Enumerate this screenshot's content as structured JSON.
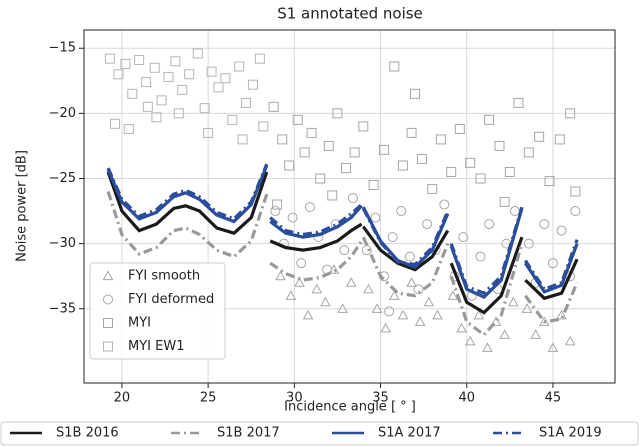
{
  "chart_data": {
    "type": "scatter",
    "title": "S1 annotated noise",
    "x_label": "Incidence angle [ ° ]",
    "y_label": "Noise power  [dB]",
    "xlim": [
      17.8,
      48.6
    ],
    "ylim": [
      -40.7,
      -13.6
    ],
    "xticks": [
      20,
      25,
      30,
      35,
      40,
      45
    ],
    "yticks": [
      {
        "value": -15,
        "label": "−15"
      },
      {
        "value": -20,
        "label": "−20"
      },
      {
        "value": -25,
        "label": "−25"
      },
      {
        "value": -30,
        "label": "−30"
      },
      {
        "value": -35,
        "label": "−35"
      }
    ],
    "grid": true,
    "scatter_series": [
      {
        "name": "FYI smooth",
        "marker": "triangle",
        "color": "#a6a6a6",
        "x": [
          29.2,
          29.8,
          30.3,
          30.8,
          31.3,
          31.8,
          32.3,
          32.8,
          33.3,
          34.3,
          34.8,
          35.3,
          35.8,
          36.3,
          36.8,
          37.3,
          37.8,
          38.3,
          39.2,
          39.7,
          40.2,
          40.7,
          41.2,
          41.7,
          42.2,
          42.7,
          43.5,
          44,
          44.5,
          45,
          45.5,
          46
        ],
        "values": [
          -32.5,
          -34,
          -33,
          -35.5,
          -33.5,
          -34.5,
          -32,
          -35,
          -33,
          -33.5,
          -35,
          -36.5,
          -34,
          -35.5,
          -33,
          -36,
          -34.5,
          -35.5,
          -34,
          -36.5,
          -37.5,
          -35.5,
          -38,
          -36,
          -37,
          -34.5,
          -35,
          -37,
          -36,
          -38,
          -35.5,
          -37.5
        ]
      },
      {
        "name": "FYI deformed",
        "marker": "circle",
        "color": "#a6a6a6",
        "x": [
          28.9,
          29.4,
          29.9,
          30.4,
          30.9,
          31.4,
          31.9,
          32.4,
          32.9,
          33.4,
          34.2,
          34.7,
          35.2,
          35.7,
          36.2,
          36.7,
          37.2,
          37.7,
          38.2,
          38.7,
          39.3,
          39.8,
          40.3,
          40.8,
          41.3,
          41.8,
          42.3,
          42.8,
          43.6,
          44,
          44.5,
          45,
          45.5,
          46,
          46.3,
          35.5
        ],
        "values": [
          -27.5,
          -30,
          -28,
          -31.5,
          -27.2,
          -29.5,
          -32,
          -28.5,
          -30.5,
          -26.5,
          -30.5,
          -28,
          -32.5,
          -29.5,
          -27.5,
          -31,
          -33.5,
          -28.5,
          -30.5,
          -27,
          -32.5,
          -29.5,
          -34,
          -31,
          -28.5,
          -33.5,
          -30,
          -27.5,
          -30,
          -33,
          -28.5,
          -31.5,
          -29,
          -32.5,
          -27.5,
          -35.2
        ]
      },
      {
        "name": "MYI",
        "marker": "square",
        "color": "#a6a6a6",
        "x": [
          28.8,
          29.3,
          29.7,
          30.2,
          30.6,
          31,
          31.5,
          32,
          32.5,
          33,
          33.5,
          34,
          34.6,
          35.2,
          35.8,
          36.3,
          36.8,
          37.4,
          38,
          38.5,
          39.1,
          39.6,
          40.2,
          40.8,
          41.3,
          41.9,
          42.5,
          43,
          43.6,
          44.2,
          44.8,
          45.4,
          46,
          46.3,
          37,
          32.2,
          29,
          42.2
        ],
        "values": [
          -19.5,
          -22,
          -24,
          -20.5,
          -23,
          -21.5,
          -25,
          -22.5,
          -20,
          -24.2,
          -23,
          -21,
          -25.5,
          -22.8,
          -16.4,
          -24,
          -21.5,
          -23.5,
          -25.8,
          -22,
          -24.5,
          -21.2,
          -23.8,
          -25,
          -20.5,
          -22.5,
          -24.5,
          -19.2,
          -23,
          -21.8,
          -25.2,
          -22,
          -20,
          -26,
          -18.5,
          -26.3,
          -27,
          -26.8
        ]
      },
      {
        "name": "MYI EW1",
        "marker": "square",
        "color": "#b5b5b5",
        "x": [
          19.3,
          19.8,
          20.2,
          20.6,
          21,
          21.4,
          21.9,
          22.3,
          22.7,
          23.1,
          23.5,
          23.9,
          24.4,
          24.8,
          25.2,
          25.6,
          26,
          26.4,
          26.8,
          27.2,
          27.6,
          28,
          19.6,
          20.4,
          22,
          25,
          27,
          21.5,
          23.3,
          28.2
        ],
        "values": [
          -15.8,
          -17,
          -16.2,
          -18.5,
          -15.9,
          -17.6,
          -16.5,
          -19,
          -17.2,
          -16,
          -18.2,
          -17,
          -15.4,
          -19.6,
          -16.8,
          -18,
          -17.3,
          -20.5,
          -16.4,
          -19.2,
          -17.8,
          -15.8,
          -20.8,
          -21.2,
          -20.3,
          -21.5,
          -22,
          -19.5,
          -20,
          -21
        ]
      }
    ],
    "x": [
      19.2,
      20,
      21,
      22,
      23,
      23.7,
      24.5,
      25.5,
      26.5,
      27.5,
      28.4,
      null,
      28.6,
      29.5,
      30.5,
      31.5,
      32.5,
      33.3,
      33.9,
      null,
      34,
      35,
      36,
      37,
      38,
      38.9,
      null,
      39.1,
      40,
      41,
      42,
      43.2,
      null,
      43.4,
      44.5,
      45.5,
      46.4
    ],
    "series": [
      {
        "name": "S1B 2016",
        "color": "#1a1a1a",
        "dash": "solid",
        "values": [
          -24.5,
          -27.5,
          -29.0,
          -28.5,
          -27.3,
          -27.1,
          -27.5,
          -28.8,
          -29.2,
          -28.0,
          -24.5,
          null,
          -29.8,
          -30.3,
          -30.5,
          -30.3,
          -29.8,
          -29,
          -28.5,
          null,
          -28.7,
          -30.5,
          -31.5,
          -32,
          -31,
          -29,
          null,
          -31.5,
          -34.5,
          -35.3,
          -34,
          -29.5,
          null,
          -32.8,
          -34.2,
          -33.8,
          -31.2
        ]
      },
      {
        "name": "S1B 2017",
        "color": "#999999",
        "dash": "dashdot",
        "values": [
          -26,
          -29.3,
          -30.8,
          -30.3,
          -29.0,
          -28.8,
          -29.3,
          -30.5,
          -31,
          -29.8,
          -26.2,
          null,
          -31.5,
          -32.3,
          -32.8,
          -32.6,
          -32,
          -31,
          -29.8,
          null,
          -29.5,
          -32.5,
          -33.8,
          -34,
          -33,
          -30,
          null,
          -32.5,
          -36,
          -37,
          -35.5,
          -30,
          null,
          -34,
          -36,
          -35.8,
          -33
        ]
      },
      {
        "name": "S1A 2017",
        "color": "#2a4d9c",
        "dash": "solid",
        "values": [
          -24.3,
          -26.8,
          -28.1,
          -27.6,
          -26.4,
          -26.1,
          -26.6,
          -27.8,
          -28.3,
          -27.0,
          -24.0,
          null,
          -28.3,
          -29.2,
          -29.5,
          -29.3,
          -28.7,
          -28,
          -27.1,
          null,
          -27.2,
          -29.8,
          -31.3,
          -31.8,
          -30.5,
          -27.7,
          null,
          -30.2,
          -33.5,
          -34.1,
          -32.8,
          -27.3,
          null,
          -31.5,
          -33.7,
          -33.2,
          -30
        ]
      },
      {
        "name": "S1A 2019",
        "color": "#2a4d9c",
        "dash": "dashdot",
        "values": [
          -24.2,
          -26.6,
          -27.9,
          -27.4,
          -26.2,
          -25.9,
          -26.4,
          -27.6,
          -28.1,
          -26.8,
          -23.9,
          null,
          -28,
          -29,
          -29.3,
          -29.1,
          -28.5,
          -27.7,
          -27.0,
          null,
          -27.3,
          -29.9,
          -31.4,
          -31.6,
          -30.3,
          -27.5,
          null,
          -30,
          -33.3,
          -33.8,
          -32.5,
          -27.2,
          null,
          -31.3,
          -33.5,
          -33,
          -29.7
        ]
      }
    ]
  }
}
